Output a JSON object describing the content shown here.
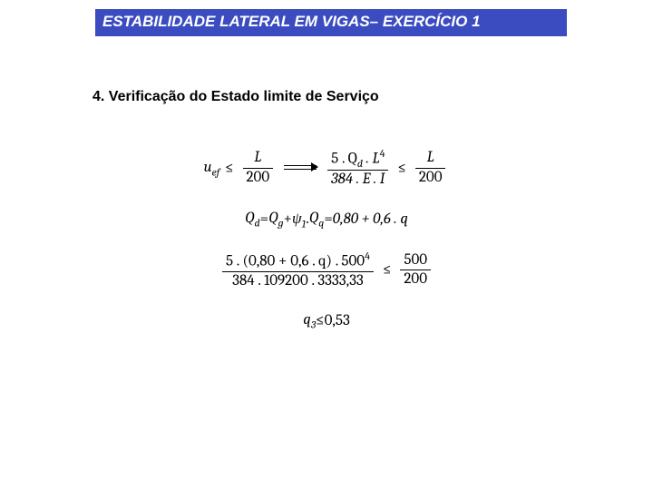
{
  "title": "ESTABILIDADE LATERAL EM VIGAS– EXERCÍCIO 1",
  "section": "4. Verificação do Estado limite de Serviço",
  "eq1": {
    "lhs_var": "u",
    "lhs_sub": "ef",
    "le1": "≤",
    "f1_num": "L",
    "f1_den": "200",
    "f2_num_a": "5 . Q",
    "f2_num_sub": "d",
    "f2_num_b": " . L",
    "f2_num_sup": "4",
    "f2_den": "384 .  E . I",
    "le2": "≤",
    "f3_num": "L",
    "f3_den": "200"
  },
  "eq2": {
    "l_var": "Q",
    "l_sub": "d",
    "eq": " = ",
    "t1": "Q",
    "t1_sub": "g",
    "plus": " + ",
    "psi": "ψ",
    "psi_sub": "1",
    "dot": " . ",
    "t2": "Q",
    "t2_sub": "q",
    "eq2": " = ",
    "rhs": "0,80 + 0,6 . q"
  },
  "eq3": {
    "num_a": "5 . (0,80 + 0,6 . q) . 500",
    "num_sup": "4",
    "den": "384 . 109200 . 3333,33",
    "le": "≤",
    "r_num": "500",
    "r_den": "200"
  },
  "eq4": {
    "var": "q",
    "sub": "3",
    "le": " ≤ ",
    "val": "0,53"
  }
}
